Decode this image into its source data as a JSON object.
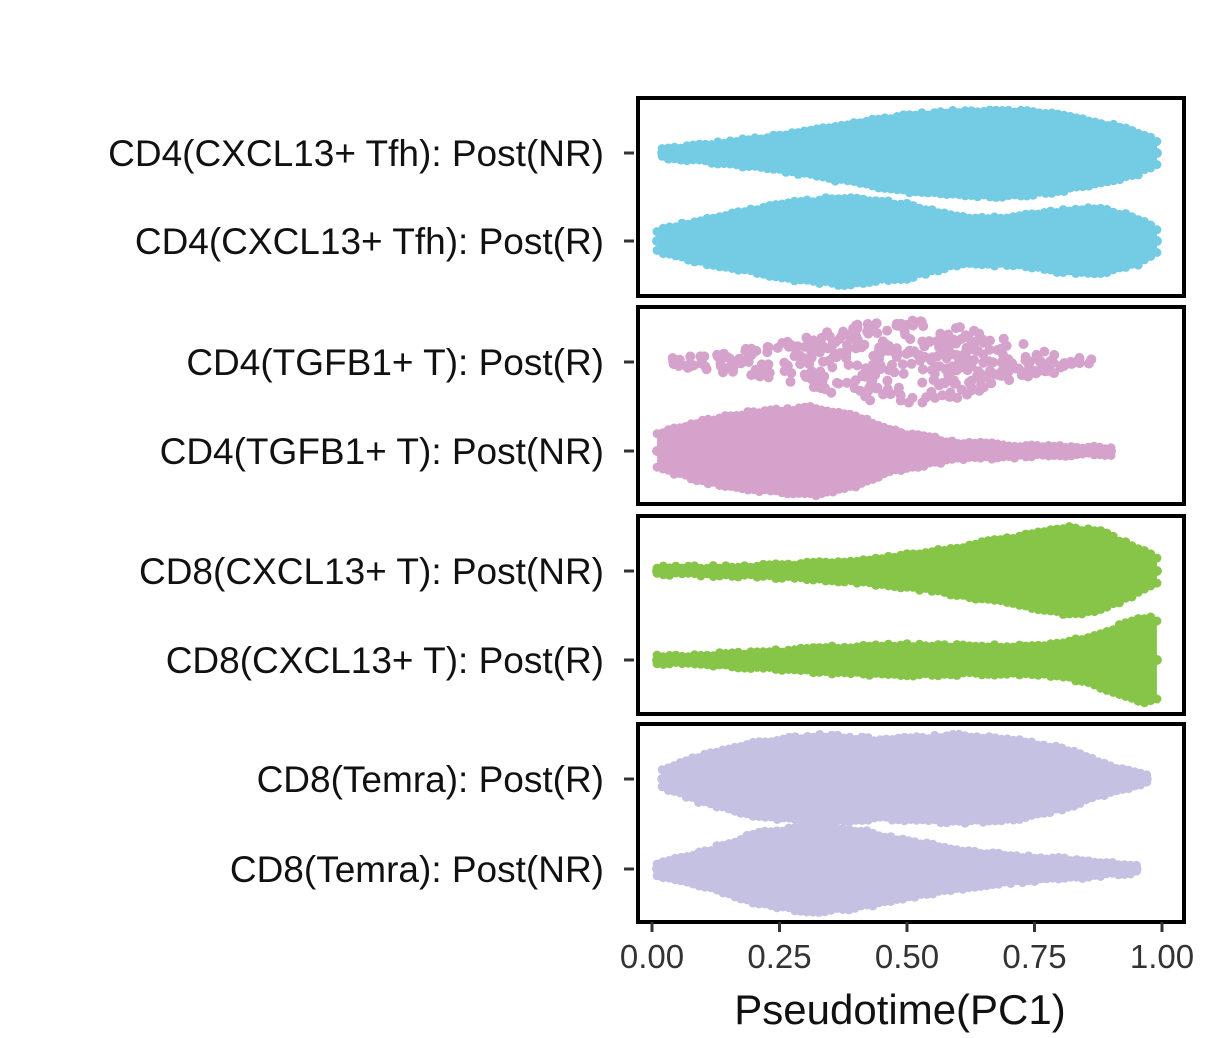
{
  "chart_data": {
    "type": "beeswarm",
    "xlabel": "Pseudotime(PC1)",
    "xlim": [
      0,
      1
    ],
    "x_ticks": [
      "0.00",
      "0.25",
      "0.50",
      "0.75",
      "1.00"
    ],
    "x_tick_values": [
      0,
      0.25,
      0.5,
      0.75,
      1.0
    ],
    "grid": false,
    "legend": "none",
    "panels": [
      {
        "rows": [
          {
            "label": "CD4(CXCL13+ Tfh): Post(NR)",
            "color": "#74CBE4",
            "style": "dense",
            "density": [
              [
                0.02,
                0.1
              ],
              [
                0.1,
                0.2
              ],
              [
                0.25,
                0.4
              ],
              [
                0.4,
                0.7
              ],
              [
                0.5,
                0.88
              ],
              [
                0.6,
                0.95
              ],
              [
                0.68,
                1.0
              ],
              [
                0.78,
                0.92
              ],
              [
                0.88,
                0.7
              ],
              [
                0.95,
                0.5
              ],
              [
                0.99,
                0.3
              ]
            ]
          },
          {
            "label": "CD4(CXCL13+ Tfh): Post(R)",
            "color": "#74CBE4",
            "style": "dense",
            "density": [
              [
                0.01,
                0.25
              ],
              [
                0.1,
                0.5
              ],
              [
                0.25,
                0.85
              ],
              [
                0.37,
                1.0
              ],
              [
                0.5,
                0.85
              ],
              [
                0.6,
                0.55
              ],
              [
                0.7,
                0.55
              ],
              [
                0.8,
                0.7
              ],
              [
                0.88,
                0.75
              ],
              [
                0.95,
                0.55
              ],
              [
                0.99,
                0.25
              ]
            ]
          }
        ]
      },
      {
        "rows": [
          {
            "label": "CD4(TGFB1+ T): Post(R)",
            "color": "#D4A2CB",
            "style": "sparse",
            "density": [
              [
                0.04,
                0.1
              ],
              [
                0.12,
                0.2
              ],
              [
                0.2,
                0.35
              ],
              [
                0.3,
                0.55
              ],
              [
                0.4,
                0.85
              ],
              [
                0.5,
                1.0
              ],
              [
                0.58,
                0.9
              ],
              [
                0.65,
                0.65
              ],
              [
                0.75,
                0.35
              ],
              [
                0.83,
                0.15
              ],
              [
                0.87,
                0.05
              ]
            ]
          },
          {
            "label": "CD4(TGFB1+ T): Post(NR)",
            "color": "#D4A2CB",
            "style": "dense",
            "density": [
              [
                0.01,
                0.4
              ],
              [
                0.1,
                0.7
              ],
              [
                0.2,
                0.9
              ],
              [
                0.32,
                1.0
              ],
              [
                0.4,
                0.8
              ],
              [
                0.48,
                0.45
              ],
              [
                0.6,
                0.2
              ],
              [
                0.75,
                0.12
              ],
              [
                0.87,
                0.08
              ],
              [
                0.9,
                0.05
              ]
            ]
          }
        ]
      },
      {
        "rows": [
          {
            "label": "CD8(CXCL13+ T): Post(NR)",
            "color": "#86C548",
            "style": "dense",
            "density": [
              [
                0.01,
                0.08
              ],
              [
                0.2,
                0.12
              ],
              [
                0.4,
                0.25
              ],
              [
                0.55,
                0.45
              ],
              [
                0.65,
                0.65
              ],
              [
                0.75,
                0.85
              ],
              [
                0.82,
                1.0
              ],
              [
                0.88,
                0.9
              ],
              [
                0.94,
                0.6
              ],
              [
                0.99,
                0.3
              ]
            ]
          },
          {
            "label": "CD8(CXCL13+ T): Post(R)",
            "color": "#86C548",
            "style": "dense",
            "density": [
              [
                0.01,
                0.08
              ],
              [
                0.2,
                0.18
              ],
              [
                0.35,
                0.3
              ],
              [
                0.5,
                0.35
              ],
              [
                0.65,
                0.32
              ],
              [
                0.78,
                0.35
              ],
              [
                0.85,
                0.5
              ],
              [
                0.92,
                0.8
              ],
              [
                0.97,
                1.0
              ],
              [
                0.99,
                0.9
              ]
            ]
          }
        ]
      },
      {
        "rows": [
          {
            "label": "CD8(Temra): Post(R)",
            "color": "#C5C1E2",
            "style": "dense",
            "density": [
              [
                0.02,
                0.2
              ],
              [
                0.1,
                0.55
              ],
              [
                0.2,
                0.85
              ],
              [
                0.33,
                1.0
              ],
              [
                0.45,
                0.9
              ],
              [
                0.6,
                1.0
              ],
              [
                0.72,
                0.9
              ],
              [
                0.82,
                0.65
              ],
              [
                0.9,
                0.3
              ],
              [
                0.97,
                0.1
              ]
            ]
          },
          {
            "label": "CD8(Temra): Post(NR)",
            "color": "#C5C1E2",
            "style": "dense",
            "density": [
              [
                0.01,
                0.15
              ],
              [
                0.1,
                0.4
              ],
              [
                0.2,
                0.8
              ],
              [
                0.31,
                1.0
              ],
              [
                0.4,
                0.9
              ],
              [
                0.5,
                0.65
              ],
              [
                0.6,
                0.45
              ],
              [
                0.72,
                0.3
              ],
              [
                0.85,
                0.2
              ],
              [
                0.95,
                0.08
              ]
            ]
          }
        ]
      }
    ]
  }
}
